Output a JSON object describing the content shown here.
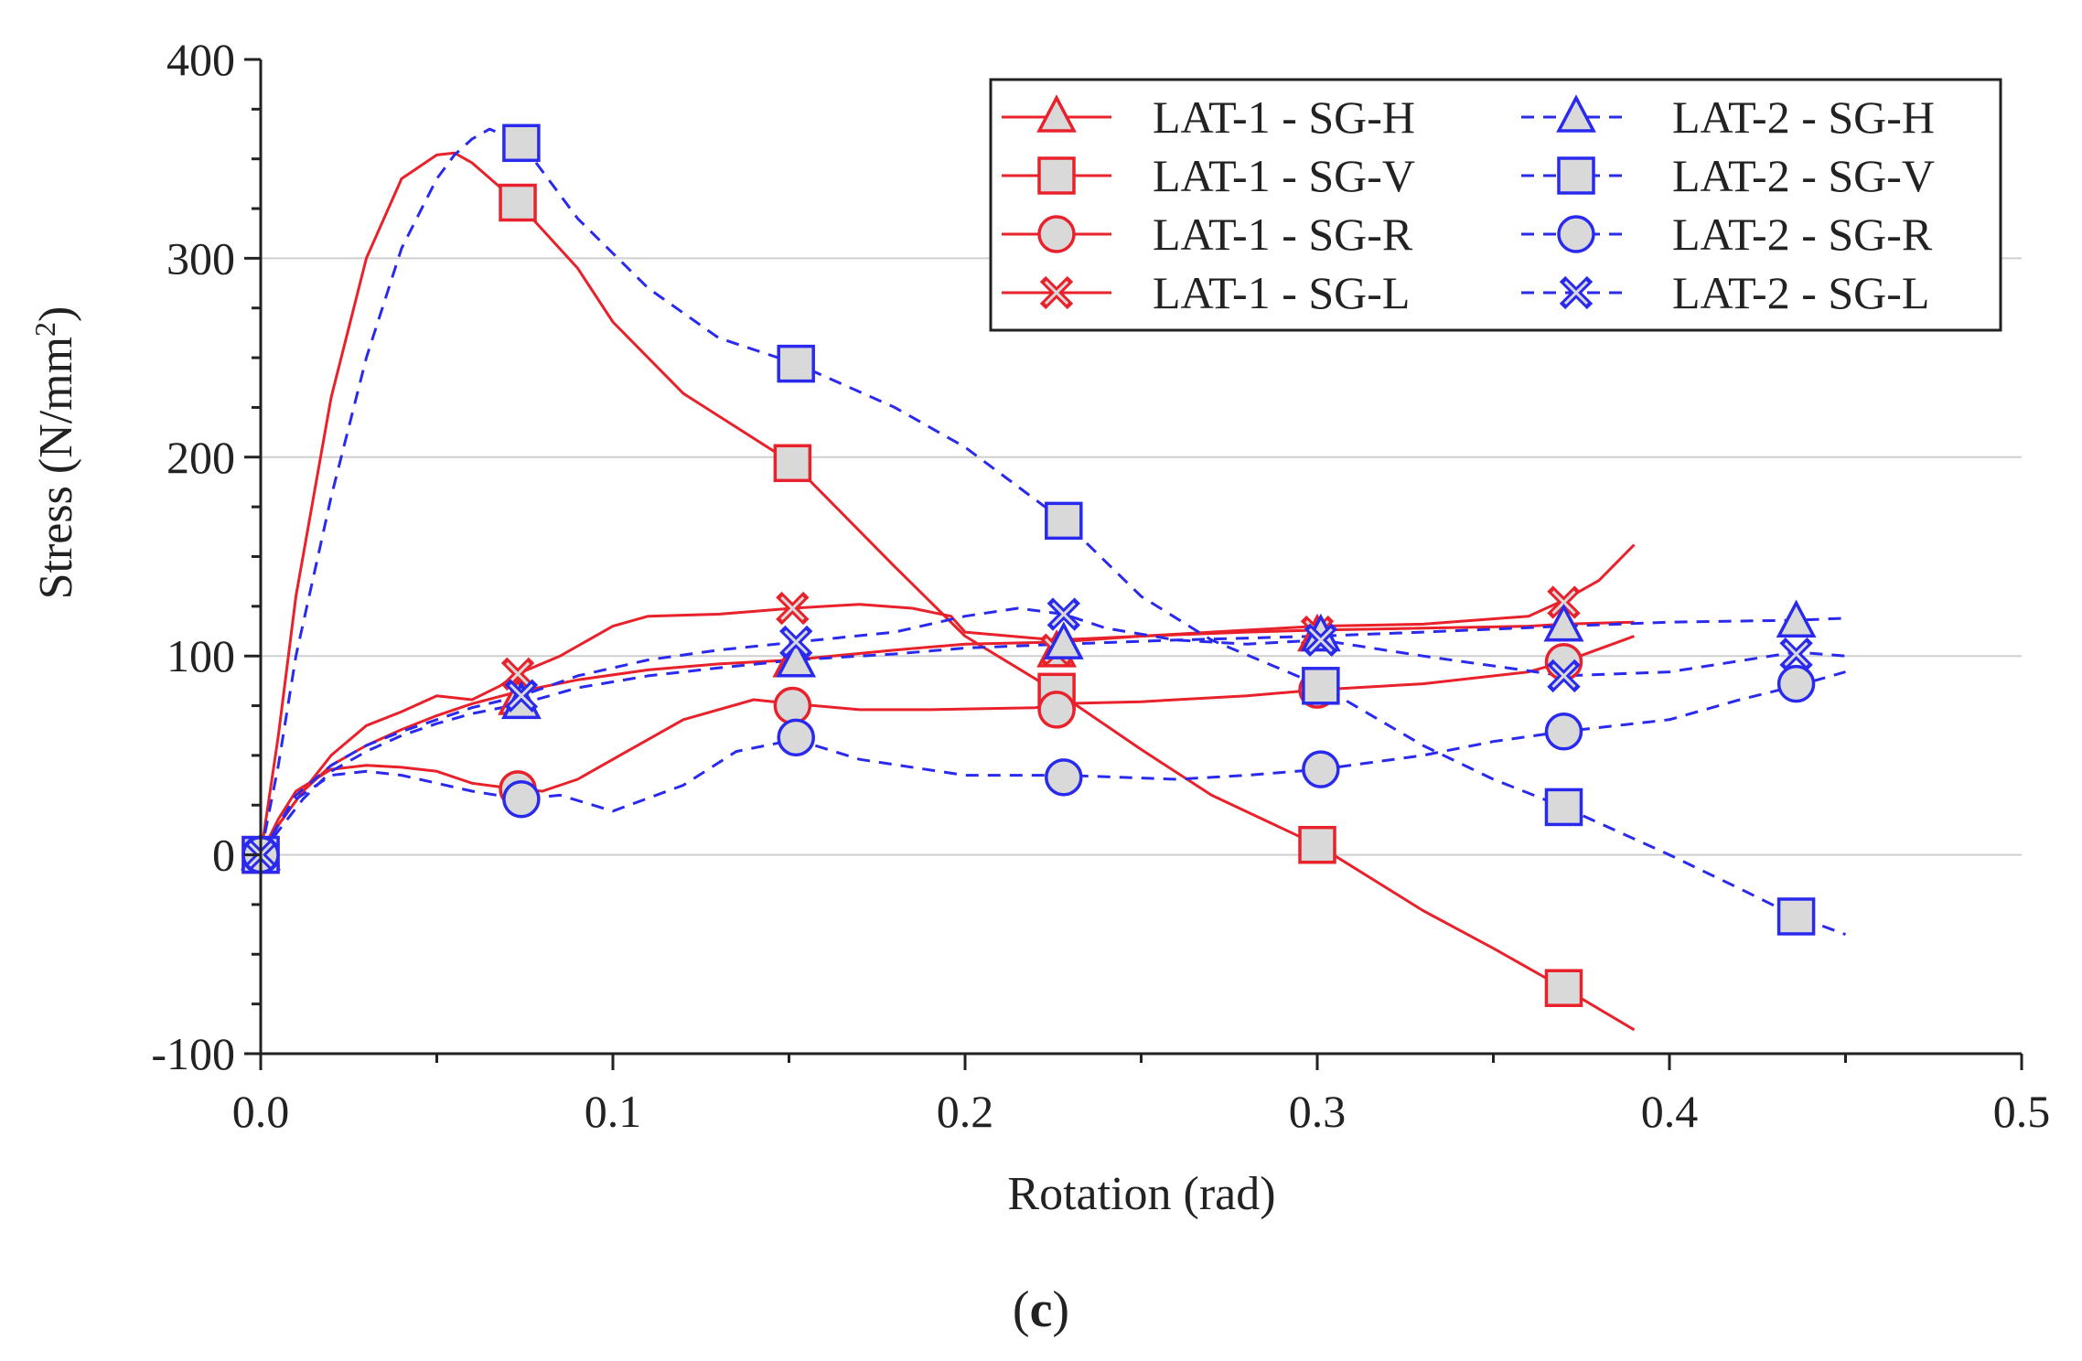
{
  "chart_data": {
    "type": "line",
    "xlabel": "Rotation (rad)",
    "ylabel": "Stress (N/mm",
    "ylabel_sup": "2",
    "ylabel_close": ")",
    "xlim": [
      0,
      0.5
    ],
    "ylim": [
      -100,
      400
    ],
    "x_ticks": [
      0,
      0.1,
      0.2,
      0.3,
      0.4,
      0.5
    ],
    "x_tick_labels": [
      "0.0",
      "0.1",
      "0.2",
      "0.3",
      "0.4",
      "0.5"
    ],
    "y_ticks": [
      -100,
      0,
      100,
      200,
      300,
      400
    ],
    "y_tick_labels": [
      "-100",
      "0",
      "100",
      "200",
      "300",
      "400"
    ],
    "grid": "horizontal",
    "legend_position": "top-right",
    "caption": {
      "open": "(",
      "letter": "c",
      "close": ")"
    },
    "colors": {
      "lat1": "#e8212b",
      "lat2": "#2a2aee",
      "marker_fill": "#d9d9d9"
    },
    "series": [
      {
        "name": "LAT-1 - SG-H",
        "group": "LAT-1",
        "marker": "triangle",
        "x": [
          0,
          0.005,
          0.012,
          0.02,
          0.03,
          0.04,
          0.05,
          0.06,
          0.073,
          0.09,
          0.11,
          0.13,
          0.151,
          0.18,
          0.2,
          0.226,
          0.25,
          0.28,
          0.3,
          0.33,
          0.36,
          0.37,
          0.39
        ],
        "y": [
          0,
          15,
          32,
          45,
          55,
          63,
          70,
          76,
          82,
          88,
          93,
          96,
          98,
          103,
          106,
          107,
          110,
          112,
          113,
          114,
          115,
          116,
          117
        ],
        "markers_x": [
          0,
          0.073,
          0.151,
          0.226,
          0.3,
          0.37
        ],
        "markers_y": [
          0,
          78,
          97,
          102,
          110,
          115
        ]
      },
      {
        "name": "LAT-1 - SG-V",
        "group": "LAT-1",
        "marker": "square",
        "x": [
          0,
          0.005,
          0.01,
          0.02,
          0.03,
          0.04,
          0.05,
          0.055,
          0.06,
          0.073,
          0.09,
          0.1,
          0.12,
          0.151,
          0.18,
          0.2,
          0.226,
          0.25,
          0.27,
          0.3,
          0.33,
          0.35,
          0.37,
          0.39
        ],
        "y": [
          0,
          60,
          130,
          230,
          300,
          340,
          352,
          353,
          348,
          328,
          295,
          268,
          232,
          197,
          145,
          110,
          82,
          53,
          30,
          5,
          -28,
          -47,
          -67,
          -88
        ],
        "markers_x": [
          0,
          0.073,
          0.151,
          0.226,
          0.3,
          0.37
        ],
        "markers_y": [
          0,
          328,
          197,
          82,
          5,
          -67
        ]
      },
      {
        "name": "LAT-1 - SG-R",
        "group": "LAT-1",
        "marker": "circle",
        "x": [
          0,
          0.005,
          0.01,
          0.02,
          0.03,
          0.04,
          0.05,
          0.06,
          0.073,
          0.08,
          0.09,
          0.1,
          0.12,
          0.14,
          0.151,
          0.17,
          0.19,
          0.22,
          0.226,
          0.25,
          0.28,
          0.3,
          0.33,
          0.36,
          0.37,
          0.39
        ],
        "y": [
          0,
          18,
          32,
          43,
          45,
          44,
          42,
          36,
          33,
          32,
          38,
          48,
          68,
          78,
          76,
          73,
          73,
          74,
          76,
          77,
          80,
          83,
          86,
          92,
          97,
          110
        ],
        "markers_x": [
          0,
          0.073,
          0.151,
          0.226,
          0.3,
          0.37
        ],
        "markers_y": [
          0,
          33,
          75,
          73,
          83,
          97
        ]
      },
      {
        "name": "LAT-1 - SG-L",
        "group": "LAT-1",
        "marker": "x",
        "x": [
          0,
          0.005,
          0.012,
          0.02,
          0.03,
          0.04,
          0.05,
          0.06,
          0.068,
          0.073,
          0.085,
          0.1,
          0.11,
          0.13,
          0.151,
          0.17,
          0.185,
          0.196,
          0.2,
          0.226,
          0.25,
          0.28,
          0.3,
          0.33,
          0.36,
          0.37,
          0.38,
          0.39
        ],
        "y": [
          0,
          15,
          32,
          50,
          65,
          72,
          80,
          78,
          85,
          91,
          100,
          115,
          120,
          121,
          124,
          126,
          124,
          120,
          112,
          108,
          110,
          113,
          115,
          116,
          120,
          128,
          138,
          156
        ],
        "markers_x": [
          0,
          0.073,
          0.151,
          0.226,
          0.3,
          0.37
        ],
        "markers_y": [
          0,
          91,
          124,
          103,
          112,
          127
        ]
      },
      {
        "name": "LAT-2 - SG-H",
        "group": "LAT-2",
        "marker": "triangle",
        "x": [
          0,
          0.005,
          0.012,
          0.02,
          0.03,
          0.04,
          0.05,
          0.06,
          0.074,
          0.09,
          0.11,
          0.13,
          0.152,
          0.18,
          0.2,
          0.228,
          0.26,
          0.3,
          0.33,
          0.37,
          0.4,
          0.436,
          0.45
        ],
        "y": [
          0,
          12,
          28,
          42,
          52,
          60,
          66,
          71,
          76,
          84,
          90,
          94,
          98,
          101,
          104,
          106,
          108,
          110,
          112,
          115,
          117,
          118,
          119
        ],
        "markers_x": [
          0,
          0.074,
          0.152,
          0.228,
          0.301,
          0.37,
          0.436
        ],
        "markers_y": [
          0,
          76,
          97,
          106,
          110,
          115,
          117
        ]
      },
      {
        "name": "LAT-2 - SG-V",
        "group": "LAT-2",
        "marker": "square",
        "x": [
          0,
          0.005,
          0.01,
          0.02,
          0.03,
          0.04,
          0.05,
          0.055,
          0.06,
          0.065,
          0.074,
          0.09,
          0.11,
          0.13,
          0.152,
          0.18,
          0.2,
          0.228,
          0.25,
          0.27,
          0.301,
          0.33,
          0.35,
          0.37,
          0.4,
          0.42,
          0.436,
          0.45
        ],
        "y": [
          0,
          45,
          100,
          180,
          250,
          305,
          340,
          352,
          360,
          365,
          358,
          320,
          285,
          260,
          247,
          225,
          205,
          168,
          130,
          108,
          85,
          55,
          38,
          24,
          0,
          -17,
          -31,
          -40
        ],
        "markers_x": [
          0,
          0.074,
          0.152,
          0.228,
          0.301,
          0.37,
          0.436
        ],
        "markers_y": [
          0,
          358,
          247,
          168,
          85,
          24,
          -31
        ]
      },
      {
        "name": "LAT-2 - SG-R",
        "group": "LAT-2",
        "marker": "circle",
        "x": [
          0,
          0.005,
          0.01,
          0.02,
          0.03,
          0.04,
          0.05,
          0.06,
          0.074,
          0.085,
          0.1,
          0.12,
          0.135,
          0.152,
          0.17,
          0.2,
          0.228,
          0.26,
          0.28,
          0.301,
          0.33,
          0.35,
          0.37,
          0.4,
          0.42,
          0.436,
          0.45
        ],
        "y": [
          0,
          15,
          28,
          40,
          42,
          40,
          36,
          32,
          28,
          30,
          22,
          35,
          52,
          58,
          48,
          40,
          40,
          38,
          40,
          43,
          50,
          57,
          62,
          68,
          78,
          85,
          92
        ],
        "markers_x": [
          0,
          0.074,
          0.152,
          0.228,
          0.301,
          0.37,
          0.436
        ],
        "markers_y": [
          0,
          28,
          59,
          39,
          43,
          62,
          86
        ]
      },
      {
        "name": "LAT-2 - SG-L",
        "group": "LAT-2",
        "marker": "x",
        "x": [
          0,
          0.005,
          0.01,
          0.02,
          0.03,
          0.04,
          0.05,
          0.06,
          0.074,
          0.09,
          0.11,
          0.13,
          0.152,
          0.18,
          0.2,
          0.215,
          0.228,
          0.24,
          0.26,
          0.28,
          0.301,
          0.33,
          0.37,
          0.4,
          0.436,
          0.45
        ],
        "y": [
          0,
          15,
          30,
          45,
          55,
          62,
          68,
          74,
          80,
          90,
          98,
          103,
          107,
          112,
          120,
          124,
          121,
          114,
          108,
          106,
          108,
          100,
          90,
          92,
          102,
          100
        ],
        "markers_x": [
          0,
          0.074,
          0.152,
          0.228,
          0.301,
          0.37,
          0.436
        ],
        "markers_y": [
          0,
          80,
          107,
          121,
          108,
          90,
          101
        ]
      }
    ]
  }
}
